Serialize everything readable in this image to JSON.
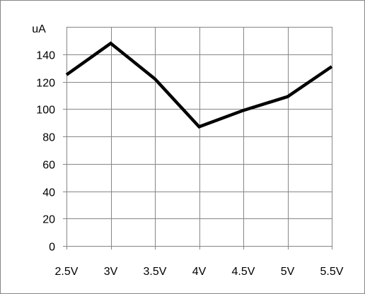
{
  "chart_data": {
    "type": "line",
    "title": "",
    "xlabel": "",
    "ylabel": "",
    "unit_label": "uA",
    "categories": [
      "2.5V",
      "3V",
      "3.5V",
      "4V",
      "4.5V",
      "5V",
      "5.5V"
    ],
    "series": [
      {
        "values": [
          125,
          148,
          122,
          87,
          99,
          109,
          131
        ]
      }
    ],
    "ylim": [
      0,
      160
    ],
    "yticks": [
      0,
      20,
      40,
      60,
      80,
      100,
      120,
      140
    ],
    "grid": true,
    "legend": "none",
    "colors": {
      "line": "#000000",
      "grid": "#868686",
      "axis": "#868686",
      "border": "#868686"
    }
  }
}
